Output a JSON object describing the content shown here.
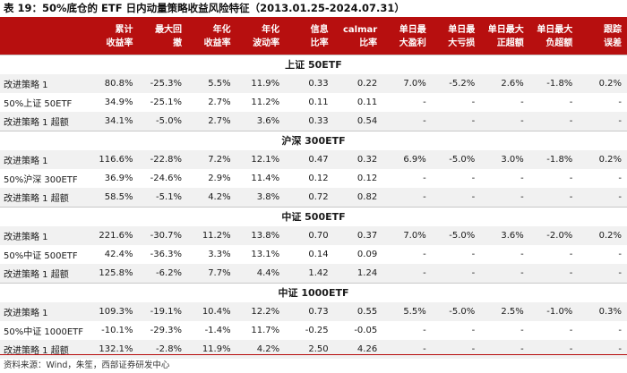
{
  "title": "表 19：50%底仓的 ETF 日内动量策略收益风险特征（2013.01.25-2024.07.31）",
  "headers": [
    [
      ""
    ],
    [
      "累计",
      "收益率"
    ],
    [
      "最大回",
      "撤"
    ],
    [
      "年化",
      "收益率"
    ],
    [
      "年化",
      "波动率"
    ],
    [
      "信息",
      "比率"
    ],
    [
      "calmar",
      "比率"
    ],
    [
      "单日最",
      "大盈利"
    ],
    [
      "单日最",
      "大亏损"
    ],
    [
      "单日最大",
      "正超额"
    ],
    [
      "单日最大",
      "负超额"
    ],
    [
      "跟踪",
      "误差"
    ]
  ],
  "sections": [
    {
      "name": "上证 50ETF",
      "rows": [
        [
          "改进策略 1",
          "80.8%",
          "-25.3%",
          "5.5%",
          "11.9%",
          "0.33",
          "0.22",
          "7.0%",
          "-5.2%",
          "2.6%",
          "-1.8%",
          "0.2%"
        ],
        [
          "50%上证 50ETF",
          "34.9%",
          "-25.1%",
          "2.7%",
          "11.2%",
          "0.11",
          "0.11",
          "-",
          "-",
          "-",
          "-",
          "-"
        ],
        [
          "改进策略 1 超额",
          "34.1%",
          "-5.0%",
          "2.7%",
          "3.6%",
          "0.33",
          "0.54",
          "-",
          "-",
          "-",
          "-",
          "-"
        ]
      ]
    },
    {
      "name": "沪深 300ETF",
      "rows": [
        [
          "改进策略 1",
          "116.6%",
          "-22.8%",
          "7.2%",
          "12.1%",
          "0.47",
          "0.32",
          "6.9%",
          "-5.0%",
          "3.0%",
          "-1.8%",
          "0.2%"
        ],
        [
          "50%沪深 300ETF",
          "36.9%",
          "-24.6%",
          "2.9%",
          "11.4%",
          "0.12",
          "0.12",
          "-",
          "-",
          "-",
          "-",
          "-"
        ],
        [
          "改进策略 1 超额",
          "58.5%",
          "-5.1%",
          "4.2%",
          "3.8%",
          "0.72",
          "0.82",
          "-",
          "-",
          "-",
          "-",
          "-"
        ]
      ]
    },
    {
      "name": "中证 500ETF",
      "rows": [
        [
          "改进策略 1",
          "221.6%",
          "-30.7%",
          "11.2%",
          "13.8%",
          "0.70",
          "0.37",
          "7.0%",
          "-5.0%",
          "3.6%",
          "-2.0%",
          "0.2%"
        ],
        [
          "50%中证 500ETF",
          "42.4%",
          "-36.3%",
          "3.3%",
          "13.1%",
          "0.14",
          "0.09",
          "-",
          "-",
          "-",
          "-",
          "-"
        ],
        [
          "改进策略 1 超额",
          "125.8%",
          "-6.2%",
          "7.7%",
          "4.4%",
          "1.42",
          "1.24",
          "-",
          "-",
          "-",
          "-",
          "-"
        ]
      ]
    },
    {
      "name": "中证 1000ETF",
      "rows": [
        [
          "改进策略 1",
          "109.3%",
          "-19.1%",
          "10.4%",
          "12.2%",
          "0.73",
          "0.55",
          "5.5%",
          "-5.0%",
          "2.5%",
          "-1.0%",
          "0.3%"
        ],
        [
          "50%中证 1000ETF",
          "-10.1%",
          "-29.3%",
          "-1.4%",
          "11.7%",
          "-0.25",
          "-0.05",
          "-",
          "-",
          "-",
          "-",
          "-"
        ],
        [
          "改进策略 1 超额",
          "132.1%",
          "-2.8%",
          "11.9%",
          "4.2%",
          "2.50",
          "4.26",
          "-",
          "-",
          "-",
          "-",
          "-"
        ]
      ]
    }
  ],
  "source": "资料来源：Wind，朱笙，西部证券研发中心"
}
